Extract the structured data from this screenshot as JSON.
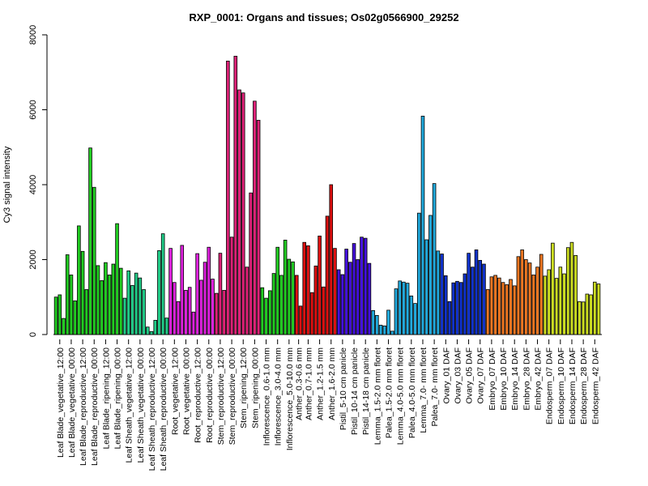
{
  "chart_data": {
    "type": "bar",
    "title": "RXP_0001: Organs and tissues; Os02g0566900_29252",
    "ylabel": "Cy3 signal intensity",
    "xlabel": "",
    "ylim": [
      0,
      8000
    ],
    "yticks": [
      0,
      2000,
      4000,
      6000,
      8000
    ],
    "grid": false,
    "labels": [
      "Leaf Blade_vegetative_12:00",
      "Leaf Blade_vegetative_00:00",
      "Leaf Blade_reproductive_12:00",
      "Leaf Blade_reproductive_00:00",
      "Leaf Blade_ripening_12:00",
      "Leaf Blade_ripening_00:00",
      "Leaf Sheath_vegetative_12:00",
      "Leaf Sheath_vegetative_00:00",
      "Leaf Sheath_reproductive_12:00",
      "Leaf Sheath_reproductive_00:00",
      "Root_vegetative_12:00",
      "Root_vegetative_00:00",
      "Root_reproductive_12:00",
      "Root_reproductive_00:00",
      "Stem_reproductive_12:00",
      "Stem_reproductive_00:00",
      "Stem_ripening_12:00",
      "Stem_ripening_00:00",
      "Inflorescence_0.6-1.0 mm",
      "Inflorescence_3.0-4.0 mm",
      "Inflorescence_5.0-10.0 mm",
      "Anther_0.3-0.6 mm",
      "Anther_0.7-1.0 mm",
      "Anther_1.2-1.5 mm",
      "Anther_1.6-2.0 mm",
      "Pistil_5-10 cm panicle",
      "Pistil_10-14 cm panicle",
      "Pistil_14-18 cm panicle",
      "Lemma_1.5-2.0 mm floret",
      "Palea_1.5-2.0 mm floret",
      "Lemma_4.0-5.0 mm floret",
      "Palea_4.0-5.0 mm floret",
      "Lemma_7.0- mm floret",
      "Palea_7.0- mm floret",
      "Ovary_01 DAF",
      "Ovary_03 DAF",
      "Ovary_05 DAF",
      "Ovary_07 DAF",
      "Embryo_07 DAF",
      "Embryo_10 DAF",
      "Embryo_14 DAF",
      "Embryo_28 DAF",
      "Embryo_42 DAF",
      "Endosperm_07 DAF",
      "Endosperm_10 DAF",
      "Endosperm_14 DAF",
      "Endosperm_28 DAF",
      "Endosperm_42 DAF"
    ],
    "groups": [
      {
        "color": "#22cc22",
        "values": [
          1000,
          1060,
          430
        ]
      },
      {
        "color": "#22cc22",
        "values": [
          2130,
          1590,
          900
        ]
      },
      {
        "color": "#22cc22",
        "values": [
          2900,
          2220,
          1200
        ]
      },
      {
        "color": "#22cc22",
        "values": [
          4980,
          3930,
          1840
        ]
      },
      {
        "color": "#22cc22",
        "values": [
          1440,
          1920,
          1590
        ]
      },
      {
        "color": "#22cc22",
        "values": [
          1880,
          2960,
          1770
        ]
      },
      {
        "color": "#22cc88",
        "values": [
          970,
          1700,
          1310
        ]
      },
      {
        "color": "#22cc88",
        "values": [
          1640,
          1510,
          1200
        ]
      },
      {
        "color": "#22cc88",
        "values": [
          200,
          80,
          380
        ]
      },
      {
        "color": "#22cc88",
        "values": [
          2240,
          2690,
          440
        ]
      },
      {
        "color": "#dd22dd",
        "values": [
          2300,
          1390,
          880
        ]
      },
      {
        "color": "#dd22dd",
        "values": [
          2380,
          1180,
          1260
        ]
      },
      {
        "color": "#dd22dd",
        "values": [
          600,
          2160,
          1450
        ]
      },
      {
        "color": "#dd22dd",
        "values": [
          1930,
          2330,
          1480
        ]
      },
      {
        "color": "#dd2277",
        "values": [
          1100,
          2170,
          1180
        ]
      },
      {
        "color": "#dd2277",
        "values": [
          7300,
          2600,
          7430
        ]
      },
      {
        "color": "#dd2277",
        "values": [
          6530,
          6450,
          1800
        ]
      },
      {
        "color": "#dd2277",
        "values": [
          3780,
          6230,
          5720
        ]
      },
      {
        "color": "#22cc22",
        "values": [
          1250,
          970,
          1170
        ]
      },
      {
        "color": "#22cc22",
        "values": [
          1630,
          2330,
          1580
        ]
      },
      {
        "color": "#22cc22",
        "values": [
          2520,
          2010,
          1940
        ]
      },
      {
        "color": "#dd1111",
        "values": [
          1580,
          760
        ]
      },
      {
        "color": "#dd1111",
        "values": [
          2460,
          2370,
          1120
        ]
      },
      {
        "color": "#dd1111",
        "values": [
          1830,
          2630,
          1270
        ]
      },
      {
        "color": "#dd1111",
        "values": [
          3160,
          4000,
          2300
        ]
      },
      {
        "color": "#4411dd",
        "values": [
          1730,
          1600,
          2280
        ]
      },
      {
        "color": "#4411dd",
        "values": [
          1930,
          2430,
          2000
        ]
      },
      {
        "color": "#4411dd",
        "values": [
          2600,
          2570,
          1900
        ]
      },
      {
        "color": "#22aadd",
        "values": [
          640,
          510,
          250
        ]
      },
      {
        "color": "#22aadd",
        "values": [
          230,
          650,
          90
        ]
      },
      {
        "color": "#22aadd",
        "values": [
          1220,
          1430,
          1400
        ]
      },
      {
        "color": "#22aadd",
        "values": [
          1370,
          1030,
          830
        ]
      },
      {
        "color": "#22aadd",
        "values": [
          3240,
          5830,
          2530
        ]
      },
      {
        "color": "#22aadd",
        "values": [
          3180,
          4030,
          2230
        ]
      },
      {
        "color": "#1133cc",
        "values": [
          2150,
          1570,
          880
        ]
      },
      {
        "color": "#1133cc",
        "values": [
          1380,
          1420,
          1390
        ]
      },
      {
        "color": "#1133cc",
        "values": [
          1620,
          2170,
          1800
        ]
      },
      {
        "color": "#1133cc",
        "values": [
          2260,
          1980,
          1880
        ]
      },
      {
        "color": "#ee7722",
        "values": [
          1200,
          1540,
          1580
        ]
      },
      {
        "color": "#ee7722",
        "values": [
          1510,
          1390,
          1330
        ]
      },
      {
        "color": "#ee7722",
        "values": [
          1470,
          1300,
          2080
        ]
      },
      {
        "color": "#ee7722",
        "values": [
          2260,
          2000,
          1910
        ]
      },
      {
        "color": "#ee7722",
        "values": [
          1590,
          1800,
          2140
        ]
      },
      {
        "color": "#ccdd22",
        "values": [
          1560,
          1730,
          2440
        ]
      },
      {
        "color": "#ccdd22",
        "values": [
          1500,
          1800,
          1620
        ]
      },
      {
        "color": "#ccdd22",
        "values": [
          2320,
          2460,
          2110
        ]
      },
      {
        "color": "#ccdd22",
        "values": [
          880,
          870,
          1080
        ]
      },
      {
        "color": "#ccdd22",
        "values": [
          1060,
          1400,
          1350
        ]
      }
    ]
  }
}
